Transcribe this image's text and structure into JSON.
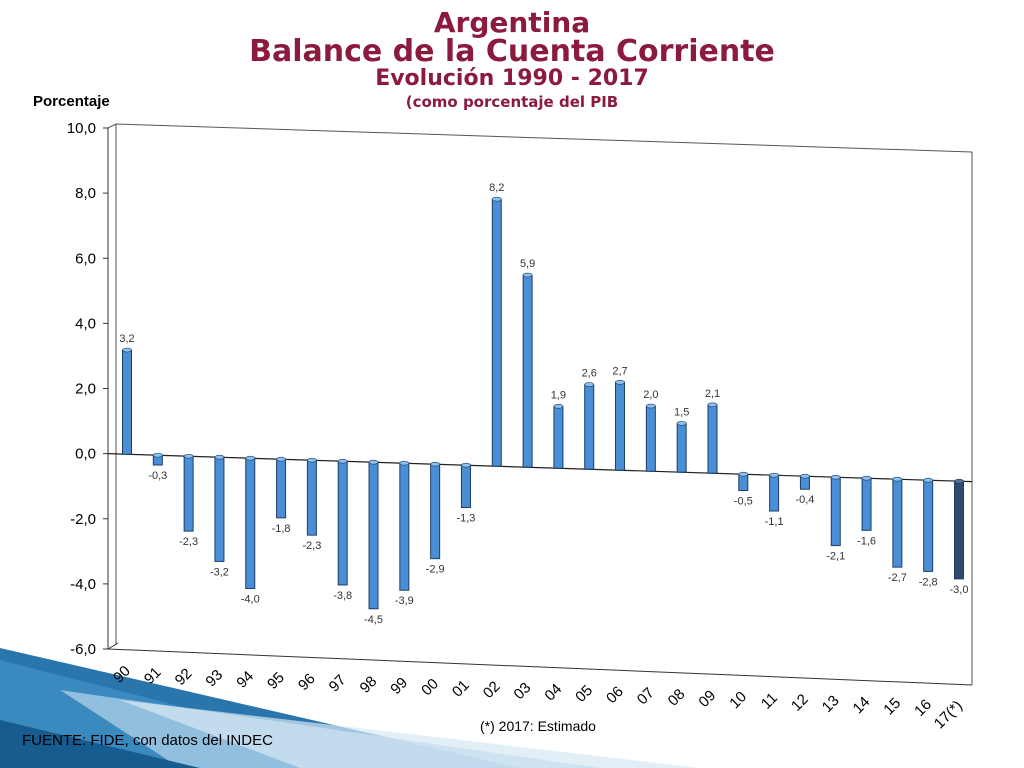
{
  "header": {
    "title": "Argentina",
    "subtitle": "Balance de la Cuenta Corriente",
    "period": "Evolución 1990 - 2017",
    "unit_note": "(como porcentaje del PIB"
  },
  "footer": {
    "source": "FUENTE: FIDE, con datos del INDEC",
    "estimate_note": "(*) 2017: Estimado"
  },
  "colors": {
    "title": "#8b1a3c",
    "bar": "#4a8fd6",
    "bar_estimated": "#2f4a6b",
    "decor": "#1f6ea8"
  },
  "chart_data": {
    "type": "bar",
    "title": "Balance de la Cuenta Corriente",
    "xlabel": "",
    "ylabel": "Porcentaje",
    "ylim": [
      -6,
      10
    ],
    "yticks": [
      "10,0",
      "8,0",
      "6,0",
      "4,0",
      "2,0",
      "0,0",
      "-2,0",
      "-4,0",
      "-6,0"
    ],
    "yticks_values": [
      10,
      8,
      6,
      4,
      2,
      0,
      -2,
      -4,
      -6
    ],
    "categories": [
      "90",
      "91",
      "92",
      "93",
      "94",
      "95",
      "96",
      "97",
      "98",
      "99",
      "00",
      "01",
      "02",
      "03",
      "04",
      "05",
      "06",
      "07",
      "08",
      "09",
      "10",
      "11",
      "12",
      "13",
      "14",
      "15",
      "16",
      "17(*)"
    ],
    "values": [
      3.2,
      -0.3,
      -2.3,
      -3.2,
      -4.0,
      -1.8,
      -2.3,
      -3.8,
      -4.5,
      -3.9,
      -2.9,
      -1.3,
      8.2,
      5.9,
      1.9,
      2.6,
      2.7,
      2.0,
      1.5,
      2.1,
      -0.5,
      -1.1,
      -0.4,
      -2.1,
      -1.6,
      -2.7,
      -2.8,
      -3.0
    ],
    "value_labels": [
      "3,2",
      "-0,3",
      "-2,3",
      "-3,2",
      "-4,0",
      "-1,8",
      "-2,3",
      "-3,8",
      "-4,5",
      "-3,9",
      "-2,9",
      "-1,3",
      "8,2",
      "5,9",
      "1,9",
      "2,6",
      "2,7",
      "2,0",
      "1,5",
      "2,1",
      "-0,5",
      "-1,1",
      "-0,4",
      "-2,1",
      "-1,6",
      "-2,7",
      "-2,8",
      "-3,0"
    ],
    "estimated_index": 27,
    "grid": false,
    "legend": "none"
  }
}
